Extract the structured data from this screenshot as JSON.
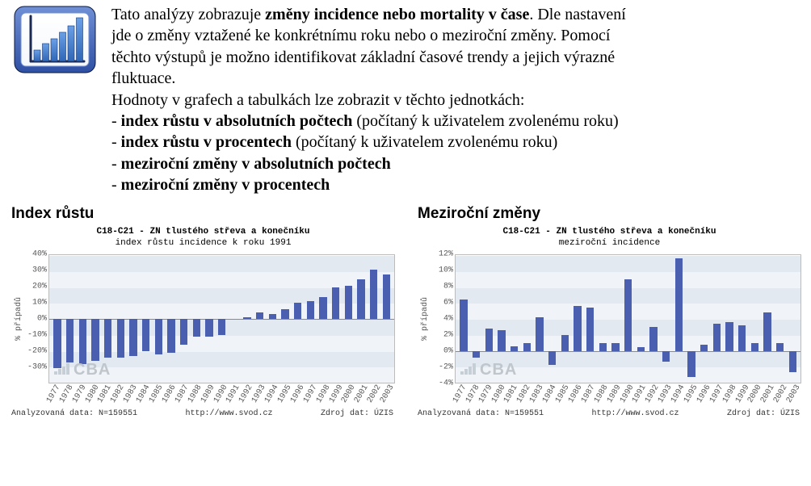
{
  "description": {
    "line1_pre": "Tato analýzy zobrazuje ",
    "line1_bold": "změny incidence nebo mortality v čase",
    "line1_post": ". Dle nastavení",
    "line2": "jde o změny vztažené ke konkrétnímu roku nebo o meziroční změny. Pomocí",
    "line3": "těchto výstupů je možno identifikovat základní časové trendy a jejich výrazné",
    "line4": "fluktuace.",
    "line5": "Hodnoty v grafech a tabulkách lze zobrazit v těchto jednotkách:",
    "bullets": [
      {
        "bold": "index růstu v absolutních počtech",
        "rest": " (počítaný k uživatelem zvolenému roku)"
      },
      {
        "bold": "index růstu v procentech",
        "rest": " (počítaný k uživatelem zvolenému roku)"
      },
      {
        "bold": "meziroční změny v absolutních počtech",
        "rest": ""
      },
      {
        "bold": "meziroční změny v procentech",
        "rest": ""
      }
    ]
  },
  "years": [
    "1977",
    "1978",
    "1979",
    "1980",
    "1981",
    "1982",
    "1983",
    "1984",
    "1985",
    "1986",
    "1987",
    "1988",
    "1989",
    "1990",
    "1991",
    "1992",
    "1993",
    "1994",
    "1995",
    "1996",
    "1997",
    "1998",
    "1999",
    "2000",
    "2001",
    "2002",
    "2003"
  ],
  "chart_left": {
    "heading": "Index růstu",
    "title": "C18-C21 - ZN tlustého střeva a konečníku",
    "subtitle": "index růstu incidence k roku 1991",
    "ylabel": "% případů",
    "ylim": [
      -40,
      40
    ],
    "yticks": [
      -40,
      -30,
      -20,
      -10,
      0,
      10,
      20,
      30,
      40
    ],
    "ytick_labels": [
      "",
      "-30%",
      "-20%",
      "-10%",
      "0%",
      "10%",
      "20%",
      "30%",
      "40%"
    ],
    "values": [
      -31,
      -27,
      -28,
      -26,
      -24,
      -24,
      -23,
      -20,
      -22,
      -21,
      -16,
      -11,
      -11,
      -10,
      0,
      1,
      4,
      3,
      6,
      10,
      11,
      14,
      20,
      21,
      25,
      31,
      28
    ],
    "bar_color": "#4a5fb0",
    "band_colors": [
      "#f0f3f7",
      "#e3e9f1"
    ],
    "grid_line": "#ffffff",
    "zero_color": "#8a8a8a",
    "footer_left": "Analyzovaná data: N=159551",
    "footer_center": "http://www.svod.cz",
    "footer_right": "Zdroj dat: ÚZIS",
    "watermark": "CBA"
  },
  "chart_right": {
    "heading": "Meziroční změny",
    "title": "C18-C21 - ZN tlustého střeva a konečníku",
    "subtitle": "meziroční incidence",
    "ylabel": "% případů",
    "ylim": [
      -4,
      12
    ],
    "yticks": [
      -4,
      -2,
      0,
      2,
      4,
      6,
      8,
      10,
      12
    ],
    "ytick_labels": [
      "-4%",
      "-2%",
      "0%",
      "2%",
      "4%",
      "6%",
      "8%",
      "10%",
      "12%"
    ],
    "values": [
      6.5,
      -0.8,
      2.8,
      2.6,
      0.6,
      1.0,
      4.2,
      -1.8,
      2.0,
      5.6,
      5.4,
      1.0,
      1.0,
      9.0,
      0.5,
      3.0,
      -1.3,
      11.6,
      -3.3,
      0.8,
      3.4,
      3.6,
      3.2,
      1.0,
      4.8,
      1.0,
      -2.7
    ],
    "bar_color": "#4a5fb0",
    "band_colors": [
      "#f0f3f7",
      "#e3e9f1"
    ],
    "grid_line": "#ffffff",
    "zero_color": "#8a8a8a",
    "footer_left": "Analyzovaná data: N=159551",
    "footer_center": "http://www.svod.cz",
    "footer_right": "Zdroj dat: ÚZIS",
    "watermark": "CBA"
  },
  "icon": {
    "outer_border": "#2f4fa3",
    "inner_bg": "#f4f7fb",
    "bars_color": "#2f66b6",
    "line_color": "#1a2a55"
  }
}
